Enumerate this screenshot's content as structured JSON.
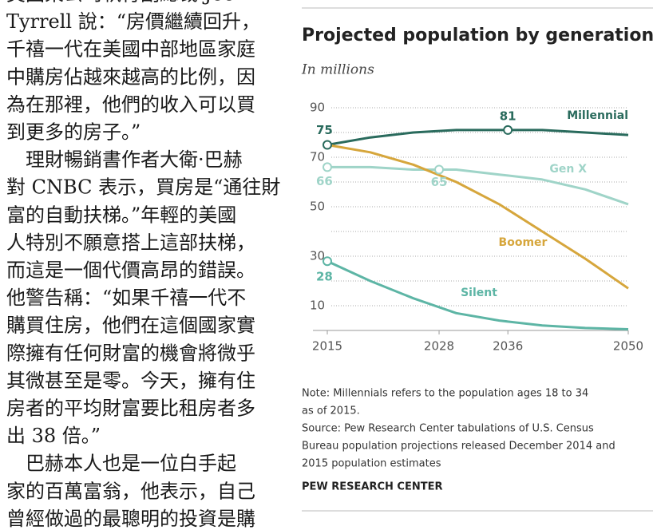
{
  "article": {
    "lines": [
      "美國某公司執行副總裁 Joe",
      "Tyrrell 說：“房價繼續回升，",
      "千禧一代在美國中部地區家庭",
      "中購房佔越來越高的比例，因",
      "為在那裡，他們的收入可以買",
      "到更多的房子。”",
      "　理財暢銷書作者大衛·巴赫",
      "對 CNBC 表示，買房是“通往財",
      "富的自動扶梯。”年輕的美國",
      "人特別不願意搭上這部扶梯，",
      "而這是一個代價高昂的錯誤。",
      "他警告稱：“如果千禧一代不",
      "購買住房，他們在這個國家實",
      "際擁有任何財富的機會將微乎",
      "其微甚至是零。今天，擁有住",
      "房者的平均財富要比租房者多",
      "出 38 倍。”",
      "　巴赫本人也是一位白手起",
      "家的百萬富翁，他表示，自己",
      "曾經做過的最聰明的投資是購"
    ]
  },
  "chart_data": {
    "type": "line",
    "title": "Projected population by generation",
    "subtitle": "In millions",
    "x": [
      2015,
      2020,
      2025,
      2030,
      2035,
      2040,
      2045,
      2050
    ],
    "series": [
      {
        "name": "Millennial",
        "color": "#2a6b5d",
        "values": [
          75,
          78,
          80,
          81,
          81,
          81,
          80,
          79
        ]
      },
      {
        "name": "Gen X",
        "color": "#9fd4c8",
        "values": [
          66,
          66,
          65,
          65,
          63,
          61,
          57,
          51
        ]
      },
      {
        "name": "Boomer",
        "color": "#d6a63c",
        "values": [
          75,
          72,
          67,
          60,
          51,
          40,
          29,
          17
        ]
      },
      {
        "name": "Silent",
        "color": "#5db5a5",
        "values": [
          28,
          20,
          13,
          7,
          4,
          2,
          1,
          0.5
        ]
      }
    ],
    "point_labels": [
      {
        "series": 0,
        "x": 2015,
        "value": 75
      },
      {
        "series": 0,
        "x": 2036,
        "value": 81
      },
      {
        "series": 1,
        "x": 2015,
        "value": 66
      },
      {
        "series": 1,
        "x": 2028,
        "value": 65
      },
      {
        "series": 3,
        "x": 2015,
        "value": 28
      }
    ],
    "xlim": [
      2015,
      2050
    ],
    "xticks": [
      2015,
      2028,
      2036,
      2050
    ],
    "ylim": [
      0,
      90
    ],
    "yticks": [
      10,
      30,
      50,
      70,
      90
    ],
    "minor_yticks": [
      20,
      40,
      60,
      80
    ],
    "grid": true,
    "notes": [
      "Note: Millennials refers to the population ages 18 to 34",
      "as of 2015.",
      "Source: Pew Research Center tabulations of U.S. Census",
      "Bureau population projections released December 2014 and",
      "2015 population estimates"
    ],
    "source": "PEW RESEARCH CENTER"
  }
}
